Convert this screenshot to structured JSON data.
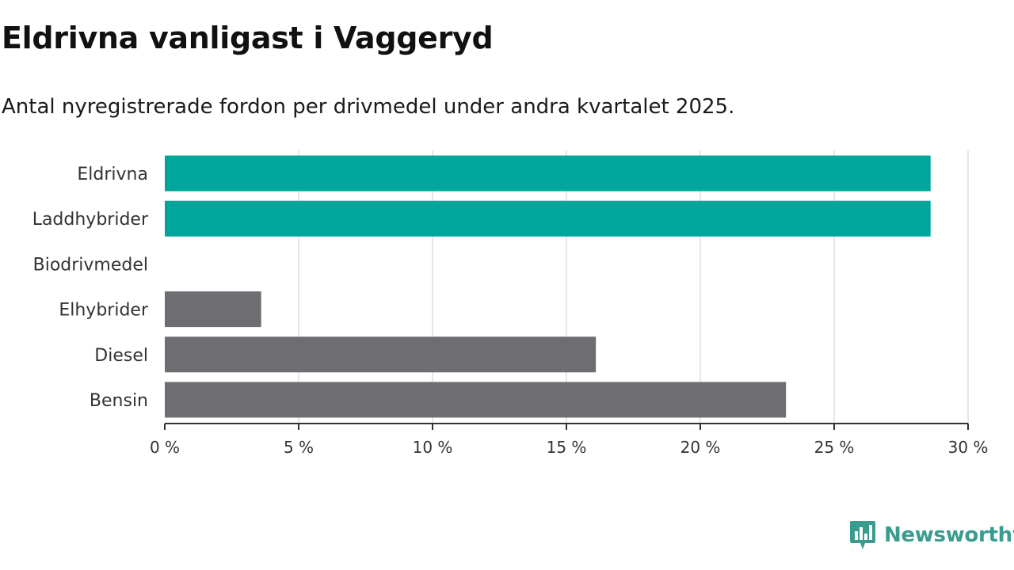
{
  "title": "Eldrivna vanligast i Vaggeryd",
  "subtitle": "Antal nyregistrerade fordon per drivmedel under andra kvartalet 2025.",
  "brand": {
    "name": "Newsworthy",
    "icon": "newsworthy-logo-icon",
    "color": "#3a9b8f"
  },
  "colors": {
    "highlight": "#00a699",
    "default": "#6e6d72",
    "grid": "#dedede",
    "axis": "#333333"
  },
  "chart_data": {
    "type": "bar",
    "orientation": "horizontal",
    "categories": [
      "Eldrivna",
      "Laddhybrider",
      "Biodrivmedel",
      "Elhybrider",
      "Diesel",
      "Bensin"
    ],
    "values": [
      28.6,
      28.6,
      0,
      3.6,
      16.1,
      23.2
    ],
    "highlight": [
      true,
      true,
      false,
      false,
      false,
      false
    ],
    "xlim": [
      0,
      30
    ],
    "xticks": [
      0,
      5,
      10,
      15,
      20,
      25,
      30
    ],
    "tick_suffix": " %",
    "grid": "vertical",
    "legend": "none"
  }
}
